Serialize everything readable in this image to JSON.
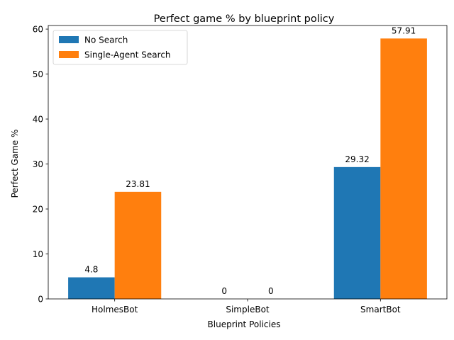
{
  "chart_data": {
    "type": "bar",
    "title": "Perfect game % by blueprint policy",
    "xlabel": "Blueprint Policies",
    "ylabel": "Perfect Game %",
    "categories": [
      "HolmesBot",
      "SimpleBot",
      "SmartBot"
    ],
    "series": [
      {
        "name": "No Search",
        "values": [
          4.8,
          0,
          29.32
        ],
        "labels": [
          "4.8",
          "0",
          "29.32"
        ],
        "color": "#1f77b4"
      },
      {
        "name": "Single-Agent Search",
        "values": [
          23.81,
          0,
          57.91
        ],
        "labels": [
          "23.81",
          "0",
          "57.91"
        ],
        "color": "#ff7f0e"
      }
    ],
    "ylim": [
      0,
      60.8
    ],
    "yticks": [
      0,
      10,
      20,
      30,
      40,
      50,
      60
    ],
    "grid": false,
    "legend_position": "top-left"
  }
}
